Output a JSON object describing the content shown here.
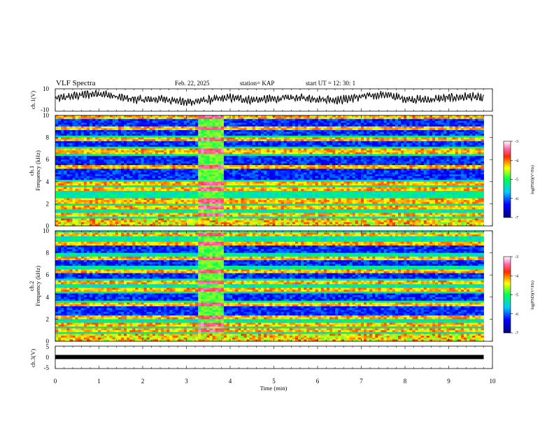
{
  "header": {
    "title": "VLF Spectra",
    "date": "Feb. 22, 2025",
    "station": "station= KAP",
    "start": "start UT =   12: 30: 1"
  },
  "chart_data": [
    {
      "type": "line",
      "panel": "ch1-waveform",
      "ylabel": "ch.1(V)",
      "ylim": [
        -10,
        10
      ],
      "yticks": [
        "10",
        "-10"
      ],
      "xlim": [
        0,
        10
      ],
      "x": [
        0,
        0.5,
        1,
        1.5,
        2,
        2.5,
        3,
        3.5,
        4,
        4.5,
        5,
        5.5,
        6,
        6.5,
        7,
        7.5,
        8,
        8.5,
        9,
        9.5,
        9.8
      ],
      "values": [
        1,
        4,
        6,
        2,
        0,
        1,
        -2,
        0,
        2,
        0,
        1,
        2,
        1,
        0,
        3,
        5,
        1,
        0,
        2,
        3,
        1
      ]
    },
    {
      "type": "heatmap",
      "panel": "ch1-spectrogram",
      "ylabel_1": "ch.1",
      "ylabel_2": "Frequency (kHz)",
      "yticks": [
        "10",
        "8",
        "6",
        "4",
        "2",
        "0"
      ],
      "ylim": [
        0,
        10
      ],
      "xlim": [
        0,
        10
      ],
      "colorbar": {
        "label": "log(PSD)(V²/Hz)",
        "ticks": [
          "-3",
          "-4",
          "-5",
          "-6",
          "-7"
        ],
        "range": [
          -7,
          -3
        ]
      },
      "bright_lines_khz": [
        0.5,
        1.0,
        1.6,
        2.1,
        2.3,
        3.3,
        3.9,
        5.3,
        6.6,
        6.9,
        7.8,
        8.8,
        9.8
      ],
      "dark_bands_khz": [
        [
          4.2,
          5.1
        ],
        [
          5.5,
          6.3
        ],
        [
          7.2,
          7.7
        ],
        [
          8.2,
          8.7
        ],
        [
          9.0,
          9.6
        ]
      ],
      "burst_minutes": [
        3.25,
        3.85
      ],
      "data_end_minute": 9.8
    },
    {
      "type": "heatmap",
      "panel": "ch2-spectrogram",
      "ylabel_1": "ch.2",
      "ylabel_2": "Frequency (kHz)",
      "yticks": [
        "10",
        "8",
        "6",
        "4",
        "2",
        "0"
      ],
      "ylim": [
        0,
        10
      ],
      "xlim": [
        0,
        10
      ],
      "colorbar": {
        "label": "log(PSD)(V²/Hz)",
        "ticks": [
          "-3",
          "-4",
          "-5",
          "-6",
          "-7"
        ],
        "range": [
          -7,
          -3
        ]
      },
      "bright_lines_khz": [
        0.5,
        1.0,
        1.5,
        2.1,
        3.3,
        4.7,
        5.3,
        6.3,
        7.5,
        8.9,
        9.6
      ],
      "dark_bands_khz": [
        [
          2.4,
          3.1
        ],
        [
          3.6,
          4.4
        ],
        [
          5.6,
          6.1
        ],
        [
          6.8,
          7.3
        ],
        [
          8.0,
          8.6
        ]
      ],
      "burst_minutes": [
        3.25,
        3.85
      ],
      "data_end_minute": 9.8
    },
    {
      "type": "line",
      "panel": "ch3-waveform",
      "ylabel": "ch.3(V)",
      "ylim": [
        -5,
        5
      ],
      "yticks": [
        "5",
        "0",
        "-5"
      ],
      "xlim": [
        0,
        10
      ],
      "x": [
        0,
        9.8
      ],
      "values": [
        0,
        0
      ]
    }
  ],
  "xaxis": {
    "label": "Time (min)",
    "ticks": [
      "0",
      "1",
      "2",
      "3",
      "4",
      "5",
      "6",
      "7",
      "8",
      "9",
      "10"
    ]
  }
}
